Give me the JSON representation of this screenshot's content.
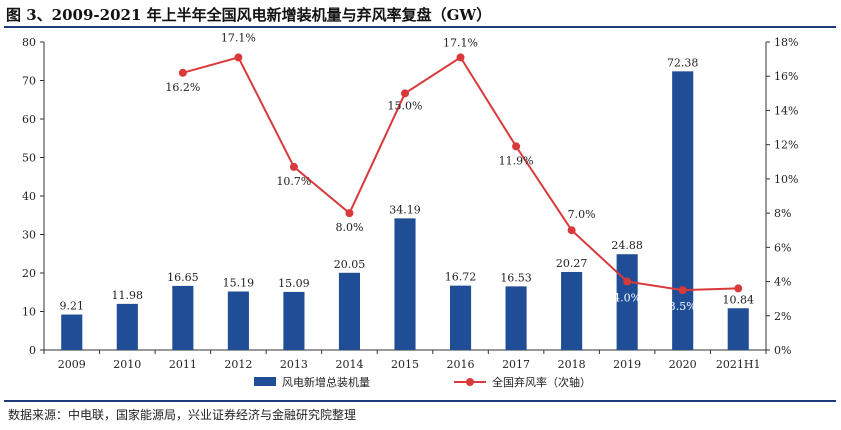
{
  "title": "图 3、2009-2021 年上半年全国风电新增装机量与弃风率复盘（GW）",
  "source": "数据来源：中电联，国家能源局，兴业证券经济与金融研究院整理",
  "chart_data": {
    "type": "bar+line",
    "categories": [
      "2009",
      "2010",
      "2011",
      "2012",
      "2013",
      "2014",
      "2015",
      "2016",
      "2017",
      "2018",
      "2019",
      "2020",
      "2021H1"
    ],
    "series": [
      {
        "name": "风电新增总装机量",
        "type": "bar",
        "axis": "left",
        "color": "#1f4e96",
        "values": [
          9.21,
          11.98,
          16.65,
          15.19,
          15.09,
          20.05,
          34.19,
          16.72,
          16.53,
          20.27,
          24.88,
          72.38,
          10.84
        ],
        "labels": [
          "9.21",
          "11.98",
          "16.65",
          "15.19",
          "15.09",
          "20.05",
          "34.19",
          "16.72",
          "16.53",
          "20.27",
          "24.88",
          "72.38",
          "10.84"
        ]
      },
      {
        "name": "全国弃风率（次轴）",
        "type": "line",
        "axis": "right",
        "color": "#d9393b",
        "values": [
          null,
          null,
          16.2,
          17.1,
          10.7,
          8.0,
          15.0,
          17.1,
          11.9,
          7.0,
          4.0,
          3.5,
          3.6
        ],
        "labels": [
          null,
          null,
          "16.2%",
          "17.1%",
          "10.7%",
          "8.0%",
          "15.0%",
          "17.1%",
          "11.9%",
          "7.0%",
          "4.0%",
          "3.5%",
          null
        ]
      }
    ],
    "y_left": {
      "min": 0,
      "max": 80,
      "ticks": [
        "0",
        "10",
        "20",
        "30",
        "40",
        "50",
        "60",
        "70",
        "80"
      ]
    },
    "y_right": {
      "min": 0,
      "max": 18,
      "ticks": [
        "0%",
        "2%",
        "4%",
        "6%",
        "8%",
        "10%",
        "12%",
        "14%",
        "16%",
        "18%"
      ]
    },
    "legend": "bottom-center",
    "grid": false
  }
}
